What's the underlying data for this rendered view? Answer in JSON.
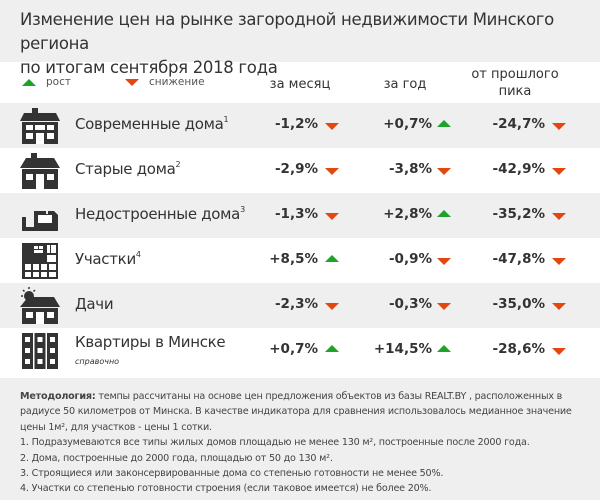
{
  "title": [
    "Изменение цен на рынке загородной недвижимости Минского региона",
    "по итогам сентября 2018 года"
  ],
  "legend": {
    "up": "рост",
    "down": "снижение"
  },
  "columns": {
    "month": "за месяц",
    "year": "за год",
    "peak": [
      "от прошлого",
      "пика"
    ]
  },
  "colors": {
    "up": "#1fa22a",
    "down": "#e2470f"
  },
  "rows": [
    {
      "label": "Современные дома",
      "sup": "1",
      "icon": "modern-house-icon",
      "month": "-1,2%",
      "month_dir": "down",
      "year": "+0,7%",
      "year_dir": "up",
      "peak": "-24,7%",
      "peak_dir": "down"
    },
    {
      "label": "Старые дома",
      "sup": "2",
      "icon": "old-house-icon",
      "month": "-2,9%",
      "month_dir": "down",
      "year": "-3,8%",
      "year_dir": "down",
      "peak": "-42,9%",
      "peak_dir": "down"
    },
    {
      "label": "Недостроенные дома",
      "sup": "3",
      "icon": "unfinished-house-icon",
      "month": "-1,3%",
      "month_dir": "down",
      "year": "+2,8%",
      "year_dir": "up",
      "peak": "-35,2%",
      "peak_dir": "down"
    },
    {
      "label": "Участки",
      "sup": "4",
      "icon": "land-plot-icon",
      "month": "+8,5%",
      "month_dir": "up",
      "year": "-0,9%",
      "year_dir": "down",
      "peak": "-47,8%",
      "peak_dir": "down"
    },
    {
      "label": "Дачи",
      "sup": "",
      "icon": "dacha-icon",
      "month": "-2,3%",
      "month_dir": "down",
      "year": "-0,3%",
      "year_dir": "down",
      "peak": "-35,0%",
      "peak_dir": "down"
    },
    {
      "label": "Квартиры в Минске",
      "sup": "",
      "sub": "справочно",
      "icon": "apartment-building-icon",
      "month": "+0,7%",
      "month_dir": "up",
      "year": "+14,5%",
      "year_dir": "up",
      "peak": "-28,6%",
      "peak_dir": "down"
    }
  ],
  "footer": {
    "method_label": "Методология:",
    "method_text": " темпы рассчитаны на основе цен предложения объектов из базы REALT.BY , расположенных в радиусе 50 километров от Минска. В качестве индикатора для сравнения использовалось медианное значение цены 1м², для участков  - цены 1 сотки.",
    "notes": [
      "1. Подразумеваются все типы жилых домов площадью не менее 130 м², построенные после 2000 года.",
      "2. Дома, построенные до 2000 года, площадью от 50 до 130 м².",
      "3. Строящиеся или законсервированные дома со степенью готовности не менее 50%.",
      "4. Участки со степенью готовности строения (если таковое имеется) не более 20%."
    ]
  }
}
